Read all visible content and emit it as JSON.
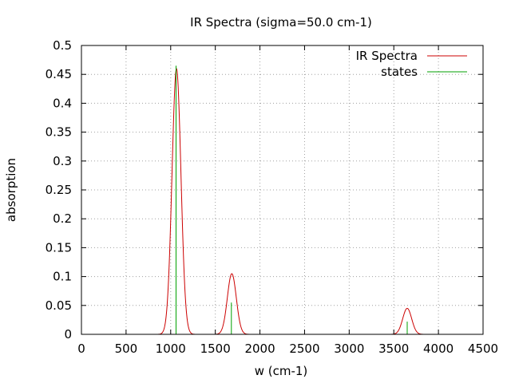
{
  "chart_data": {
    "type": "line",
    "title": "IR Spectra (sigma=50.0 cm-1)",
    "xlabel": "w (cm-1)",
    "ylabel": "absorption",
    "xlim": [
      0,
      4500
    ],
    "ylim": [
      0,
      0.5
    ],
    "x_ticks": [
      "0",
      "500",
      "1000",
      "1500",
      "2000",
      "2500",
      "3000",
      "3500",
      "4000",
      "4500"
    ],
    "y_ticks": [
      "0",
      "0.05",
      "0.1",
      "0.15",
      "0.2",
      "0.25",
      "0.3",
      "0.35",
      "0.4",
      "0.45",
      "0.5"
    ],
    "grid": true,
    "legend_position": "top-right",
    "sigma": 50.0,
    "series": [
      {
        "name": "IR Spectra",
        "kind": "gaussian-sum",
        "color": "#cc0000",
        "peaks": [
          {
            "center": 1065,
            "height": 0.46
          },
          {
            "center": 1685,
            "height": 0.105
          },
          {
            "center": 3650,
            "height": 0.045
          }
        ]
      },
      {
        "name": "states",
        "kind": "impulses",
        "color": "#00a000",
        "x": [
          1060,
          1680,
          3650
        ],
        "y": [
          0.465,
          0.055,
          0.022
        ]
      }
    ]
  }
}
